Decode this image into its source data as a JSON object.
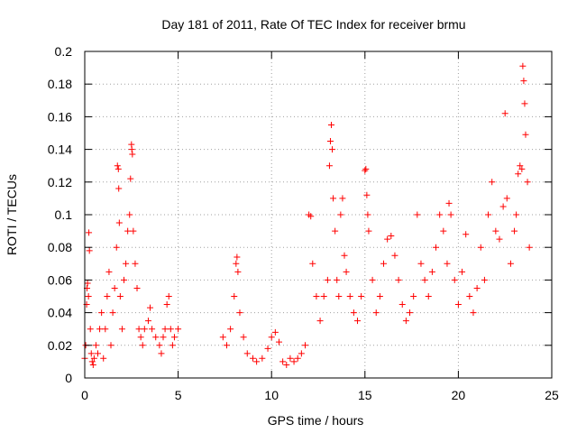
{
  "chart_data": {
    "type": "scatter",
    "title": "Day 181 of 2011, Rate Of TEC Index for receiver brmu",
    "xlabel": "GPS time / hours",
    "ylabel": "ROTI / TECUs",
    "xlim": [
      0,
      25
    ],
    "ylim": [
      0,
      0.2
    ],
    "x_ticks": [
      0,
      5,
      10,
      15,
      20,
      25
    ],
    "y_ticks": [
      0,
      0.02,
      0.04,
      0.06,
      0.08,
      0.1,
      0.12,
      0.14,
      0.16,
      0.18,
      0.2
    ],
    "x_tick_labels": [
      "0",
      "5",
      "10",
      "15",
      "20",
      "25"
    ],
    "y_tick_labels": [
      "0",
      "0.02",
      "0.04",
      "0.06",
      "0.08",
      "0.1",
      "0.12",
      "0.14",
      "0.16",
      "0.18",
      "0.2"
    ],
    "grid": true,
    "marker": "+",
    "color": "#ff0000",
    "legend": "none",
    "series": [
      {
        "points": [
          [
            0.0,
            0.012
          ],
          [
            0.05,
            0.02
          ],
          [
            0.1,
            0.045
          ],
          [
            0.12,
            0.055
          ],
          [
            0.15,
            0.058
          ],
          [
            0.2,
            0.05
          ],
          [
            0.22,
            0.089
          ],
          [
            0.25,
            0.078
          ],
          [
            0.3,
            0.03
          ],
          [
            0.35,
            0.015
          ],
          [
            0.4,
            0.01
          ],
          [
            0.45,
            0.008
          ],
          [
            0.5,
            0.012
          ],
          [
            0.6,
            0.02
          ],
          [
            0.7,
            0.015
          ],
          [
            0.8,
            0.03
          ],
          [
            0.9,
            0.04
          ],
          [
            1.0,
            0.012
          ],
          [
            1.1,
            0.03
          ],
          [
            1.2,
            0.05
          ],
          [
            1.3,
            0.065
          ],
          [
            1.4,
            0.02
          ],
          [
            1.5,
            0.04
          ],
          [
            1.6,
            0.055
          ],
          [
            1.7,
            0.08
          ],
          [
            1.75,
            0.13
          ],
          [
            1.8,
            0.128
          ],
          [
            1.82,
            0.116
          ],
          [
            1.85,
            0.095
          ],
          [
            1.9,
            0.05
          ],
          [
            2.0,
            0.03
          ],
          [
            2.1,
            0.06
          ],
          [
            2.2,
            0.07
          ],
          [
            2.3,
            0.09
          ],
          [
            2.4,
            0.1
          ],
          [
            2.45,
            0.122
          ],
          [
            2.5,
            0.143
          ],
          [
            2.52,
            0.14
          ],
          [
            2.55,
            0.137
          ],
          [
            2.6,
            0.09
          ],
          [
            2.7,
            0.07
          ],
          [
            2.8,
            0.055
          ],
          [
            2.9,
            0.03
          ],
          [
            3.0,
            0.025
          ],
          [
            3.1,
            0.02
          ],
          [
            3.2,
            0.03
          ],
          [
            3.4,
            0.035
          ],
          [
            3.5,
            0.043
          ],
          [
            3.6,
            0.03
          ],
          [
            3.8,
            0.025
          ],
          [
            4.0,
            0.02
          ],
          [
            4.1,
            0.015
          ],
          [
            4.2,
            0.025
          ],
          [
            4.3,
            0.03
          ],
          [
            4.4,
            0.045
          ],
          [
            4.5,
            0.05
          ],
          [
            4.6,
            0.03
          ],
          [
            4.7,
            0.02
          ],
          [
            4.8,
            0.025
          ],
          [
            5.0,
            0.03
          ],
          [
            7.4,
            0.025
          ],
          [
            7.6,
            0.02
          ],
          [
            7.8,
            0.03
          ],
          [
            8.0,
            0.05
          ],
          [
            8.1,
            0.07
          ],
          [
            8.15,
            0.074
          ],
          [
            8.2,
            0.065
          ],
          [
            8.3,
            0.04
          ],
          [
            8.5,
            0.025
          ],
          [
            8.7,
            0.015
          ],
          [
            9.0,
            0.012
          ],
          [
            9.2,
            0.01
          ],
          [
            9.5,
            0.012
          ],
          [
            9.8,
            0.018
          ],
          [
            10.0,
            0.025
          ],
          [
            10.2,
            0.028
          ],
          [
            10.4,
            0.022
          ],
          [
            10.6,
            0.01
          ],
          [
            10.8,
            0.008
          ],
          [
            11.0,
            0.012
          ],
          [
            11.2,
            0.01
          ],
          [
            11.4,
            0.012
          ],
          [
            11.6,
            0.015
          ],
          [
            11.8,
            0.02
          ],
          [
            12.0,
            0.1
          ],
          [
            12.1,
            0.099
          ],
          [
            12.2,
            0.07
          ],
          [
            12.4,
            0.05
          ],
          [
            12.6,
            0.035
          ],
          [
            12.8,
            0.05
          ],
          [
            13.0,
            0.06
          ],
          [
            13.1,
            0.13
          ],
          [
            13.15,
            0.145
          ],
          [
            13.2,
            0.155
          ],
          [
            13.25,
            0.14
          ],
          [
            13.3,
            0.11
          ],
          [
            13.4,
            0.09
          ],
          [
            13.5,
            0.06
          ],
          [
            13.6,
            0.05
          ],
          [
            13.7,
            0.1
          ],
          [
            13.8,
            0.11
          ],
          [
            13.9,
            0.075
          ],
          [
            14.0,
            0.065
          ],
          [
            14.2,
            0.05
          ],
          [
            14.4,
            0.04
          ],
          [
            14.6,
            0.035
          ],
          [
            14.8,
            0.05
          ],
          [
            15.0,
            0.127
          ],
          [
            15.05,
            0.128
          ],
          [
            15.1,
            0.112
          ],
          [
            15.15,
            0.1
          ],
          [
            15.2,
            0.09
          ],
          [
            15.4,
            0.06
          ],
          [
            15.6,
            0.04
          ],
          [
            15.8,
            0.05
          ],
          [
            16.0,
            0.07
          ],
          [
            16.2,
            0.085
          ],
          [
            16.4,
            0.087
          ],
          [
            16.6,
            0.075
          ],
          [
            16.8,
            0.06
          ],
          [
            17.0,
            0.045
          ],
          [
            17.2,
            0.035
          ],
          [
            17.4,
            0.04
          ],
          [
            17.6,
            0.05
          ],
          [
            17.8,
            0.1
          ],
          [
            18.0,
            0.07
          ],
          [
            18.2,
            0.06
          ],
          [
            18.4,
            0.05
          ],
          [
            18.6,
            0.065
          ],
          [
            18.8,
            0.08
          ],
          [
            19.0,
            0.1
          ],
          [
            19.2,
            0.09
          ],
          [
            19.4,
            0.07
          ],
          [
            19.5,
            0.107
          ],
          [
            19.6,
            0.1
          ],
          [
            19.8,
            0.06
          ],
          [
            20.0,
            0.045
          ],
          [
            20.2,
            0.065
          ],
          [
            20.4,
            0.088
          ],
          [
            20.6,
            0.05
          ],
          [
            20.8,
            0.04
          ],
          [
            21.0,
            0.055
          ],
          [
            21.2,
            0.08
          ],
          [
            21.4,
            0.06
          ],
          [
            21.6,
            0.1
          ],
          [
            21.8,
            0.12
          ],
          [
            22.0,
            0.09
          ],
          [
            22.2,
            0.085
          ],
          [
            22.4,
            0.105
          ],
          [
            22.5,
            0.162
          ],
          [
            22.6,
            0.11
          ],
          [
            22.8,
            0.07
          ],
          [
            23.0,
            0.09
          ],
          [
            23.1,
            0.1
          ],
          [
            23.2,
            0.125
          ],
          [
            23.3,
            0.13
          ],
          [
            23.4,
            0.128
          ],
          [
            23.45,
            0.191
          ],
          [
            23.5,
            0.182
          ],
          [
            23.55,
            0.168
          ],
          [
            23.6,
            0.149
          ],
          [
            23.7,
            0.12
          ],
          [
            23.8,
            0.08
          ]
        ]
      }
    ]
  }
}
